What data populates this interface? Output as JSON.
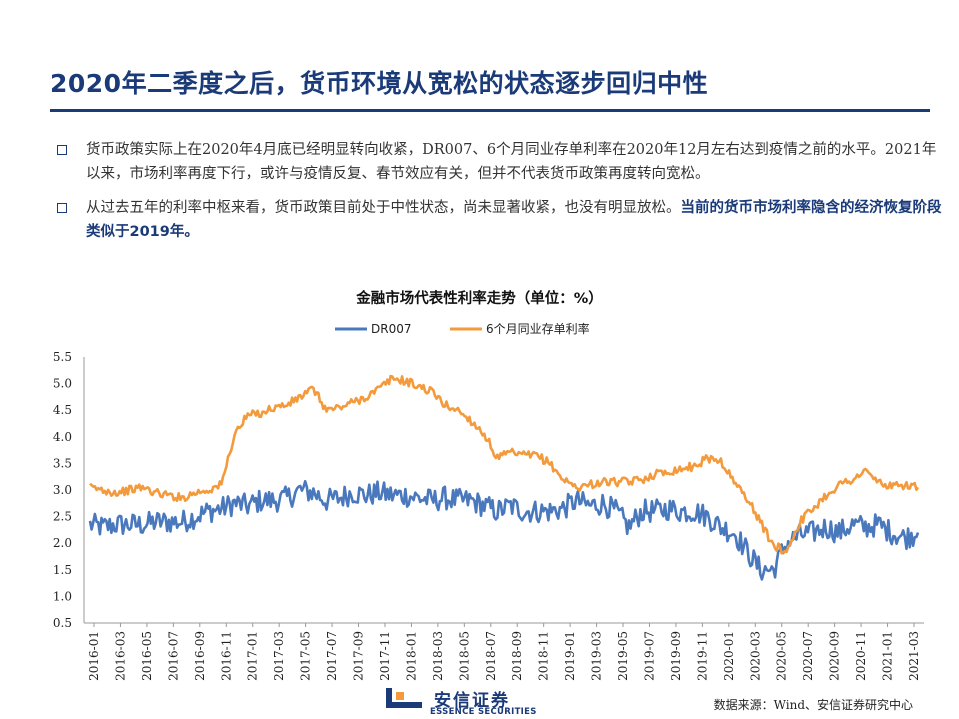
{
  "slide": {
    "title": "2020年二季度之后，货币环境从宽松的状态逐步回归中性"
  },
  "bullets": [
    {
      "text": "货币政策实际上在2020年4月底已经明显转向收紧，DR007、6个月同业存单利率在2020年12月左右达到疫情之前的水平。2021年以来，市场利率再度下行，或许与疫情反复、春节效应有关，但并不代表货币政策再度转向宽松。",
      "emphasis": ""
    },
    {
      "text": "从过去五年的利率中枢来看，货币政策目前处于中性状态，尚未显著收紧，也没有明显放松。",
      "emphasis": "当前的货币市场利率隐含的经济恢复阶段类似于2019年。"
    }
  ],
  "chart": {
    "title": "金融市场代表性利率走势（单位：%）"
  },
  "chart_data": {
    "type": "line",
    "title": "金融市场代表性利率走势（单位：%）",
    "xlabel": "",
    "ylabel": "",
    "ylim": [
      0.5,
      5.5
    ],
    "yticks": [
      "0.5",
      "1.0",
      "1.5",
      "2.0",
      "2.5",
      "3.0",
      "3.5",
      "4.0",
      "4.5",
      "5.0",
      "5.5"
    ],
    "x_tick_labels": [
      "2016-01",
      "2016-03",
      "2016-05",
      "2016-07",
      "2016-09",
      "2016-11",
      "2017-01",
      "2017-03",
      "2017-05",
      "2017-07",
      "2017-09",
      "2017-11",
      "2018-01",
      "2018-03",
      "2018-05",
      "2018-07",
      "2018-09",
      "2018-11",
      "2019-01",
      "2019-03",
      "2019-05",
      "2019-07",
      "2019-09",
      "2019-11",
      "2020-01",
      "2020-03",
      "2020-05",
      "2020-07",
      "2020-09",
      "2020-11",
      "2021-01",
      "2021-03"
    ],
    "legend_position": "top-center",
    "grid": false,
    "x": [
      "2016-01",
      "2016-02",
      "2016-03",
      "2016-04",
      "2016-05",
      "2016-06",
      "2016-07",
      "2016-08",
      "2016-09",
      "2016-10",
      "2016-11",
      "2016-12",
      "2017-01",
      "2017-02",
      "2017-03",
      "2017-04",
      "2017-05",
      "2017-06",
      "2017-07",
      "2017-08",
      "2017-09",
      "2017-10",
      "2017-11",
      "2017-12",
      "2018-01",
      "2018-02",
      "2018-03",
      "2018-04",
      "2018-05",
      "2018-06",
      "2018-07",
      "2018-08",
      "2018-09",
      "2018-10",
      "2018-11",
      "2018-12",
      "2019-01",
      "2019-02",
      "2019-03",
      "2019-04",
      "2019-05",
      "2019-06",
      "2019-07",
      "2019-08",
      "2019-09",
      "2019-10",
      "2019-11",
      "2019-12",
      "2020-01",
      "2020-02",
      "2020-03",
      "2020-04",
      "2020-05",
      "2020-06",
      "2020-07",
      "2020-08",
      "2020-09",
      "2020-10",
      "2020-11",
      "2020-12",
      "2021-01",
      "2021-02",
      "2021-03",
      "2021-04"
    ],
    "series": [
      {
        "name": "DR007",
        "color": "#4a78bd",
        "values": [
          2.35,
          2.3,
          2.35,
          2.35,
          2.35,
          2.4,
          2.4,
          2.4,
          2.5,
          2.6,
          2.65,
          2.75,
          2.7,
          2.8,
          2.8,
          2.85,
          3.0,
          2.95,
          2.8,
          2.85,
          2.95,
          2.9,
          2.95,
          2.9,
          2.9,
          2.85,
          2.8,
          2.85,
          2.8,
          2.8,
          2.7,
          2.6,
          2.7,
          2.6,
          2.6,
          2.6,
          2.65,
          2.8,
          2.7,
          2.75,
          2.6,
          2.3,
          2.6,
          2.6,
          2.65,
          2.6,
          2.6,
          2.5,
          2.3,
          2.2,
          1.85,
          1.5,
          1.5,
          2.0,
          2.15,
          2.2,
          2.3,
          2.2,
          2.35,
          2.3,
          2.35,
          2.2,
          2.1,
          2.2
        ]
      },
      {
        "name": "6个月同业存单利率",
        "color": "#f39a3c",
        "values": [
          3.05,
          3.0,
          2.95,
          3.0,
          3.05,
          2.95,
          2.9,
          2.85,
          2.95,
          3.0,
          3.1,
          4.05,
          4.4,
          4.45,
          4.55,
          4.6,
          4.75,
          4.9,
          4.5,
          4.55,
          4.65,
          4.75,
          4.9,
          5.1,
          5.05,
          4.95,
          4.85,
          4.6,
          4.5,
          4.3,
          4.05,
          3.6,
          3.7,
          3.65,
          3.65,
          3.5,
          3.2,
          3.05,
          3.1,
          3.15,
          3.15,
          3.15,
          3.2,
          3.3,
          3.35,
          3.4,
          3.45,
          3.6,
          3.55,
          3.15,
          2.85,
          2.4,
          1.95,
          1.85,
          2.4,
          2.65,
          2.9,
          3.1,
          3.2,
          3.35,
          3.15,
          3.05,
          3.1,
          3.05
        ]
      }
    ]
  },
  "footer": {
    "logo_cn": "安信证券",
    "logo_en": "ESSENCE SECURITIES",
    "source": "数据来源：Wind、安信证券研究中心"
  },
  "colors": {
    "brand": "#1a3a78",
    "dr007": "#4a78bd",
    "ncd": "#f39a3c"
  }
}
